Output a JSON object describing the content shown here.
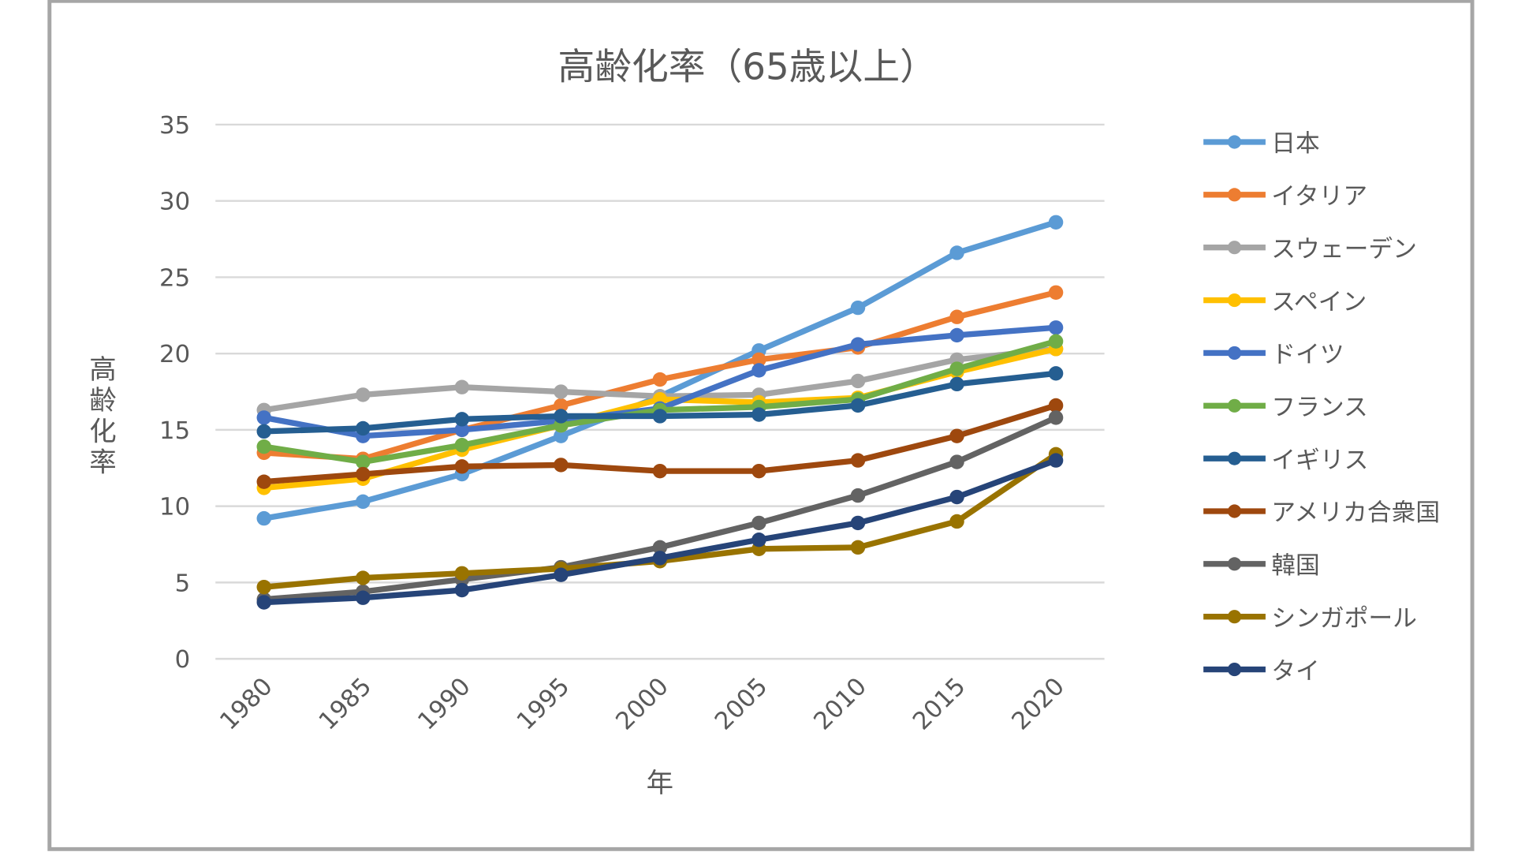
{
  "chart_data": {
    "type": "line",
    "title": "高齢化率（65歳以上）",
    "xlabel": "年",
    "ylabel": "高齢化率",
    "ylim": [
      0,
      35
    ],
    "yticks": [
      0,
      5,
      10,
      15,
      20,
      25,
      30,
      35
    ],
    "grid": true,
    "legend": "right",
    "categories": [
      "1980",
      "1985",
      "1990",
      "1995",
      "2000",
      "2005",
      "2010",
      "2015",
      "2020"
    ],
    "series": [
      {
        "name": "日本",
        "color": "#5B9BD5",
        "values": [
          9.2,
          10.3,
          12.1,
          14.6,
          17.2,
          20.2,
          23.0,
          26.6,
          28.6
        ]
      },
      {
        "name": "イタリア",
        "color": "#ED7D31",
        "values": [
          13.5,
          13.1,
          15.0,
          16.6,
          18.3,
          19.6,
          20.4,
          22.4,
          24.0
        ]
      },
      {
        "name": "スウェーデン",
        "color": "#A5A5A5",
        "values": [
          16.3,
          17.3,
          17.8,
          17.5,
          17.2,
          17.3,
          18.2,
          19.6,
          20.3
        ]
      },
      {
        "name": "スペイン",
        "color": "#FFC000",
        "values": [
          11.2,
          11.8,
          13.7,
          15.3,
          17.0,
          16.8,
          17.1,
          18.8,
          20.3
        ]
      },
      {
        "name": "ドイツ",
        "color": "#4472C4",
        "values": [
          15.8,
          14.6,
          15.0,
          15.6,
          16.4,
          18.9,
          20.6,
          21.2,
          21.7
        ]
      },
      {
        "name": "フランス",
        "color": "#70AD47",
        "values": [
          13.9,
          12.9,
          14.0,
          15.3,
          16.3,
          16.5,
          17.0,
          19.0,
          20.8
        ]
      },
      {
        "name": "イギリス",
        "color": "#255E91",
        "values": [
          14.9,
          15.1,
          15.7,
          15.9,
          15.9,
          16.0,
          16.6,
          18.0,
          18.7
        ]
      },
      {
        "name": "アメリカ合衆国",
        "color": "#9E480E",
        "values": [
          11.6,
          12.1,
          12.6,
          12.7,
          12.3,
          12.3,
          13.0,
          14.6,
          16.6
        ]
      },
      {
        "name": "韓国",
        "color": "#636363",
        "values": [
          3.9,
          4.4,
          5.2,
          6.0,
          7.3,
          8.9,
          10.7,
          12.9,
          15.8
        ]
      },
      {
        "name": "シンガポール",
        "color": "#997300",
        "values": [
          4.7,
          5.3,
          5.6,
          5.9,
          6.4,
          7.2,
          7.3,
          9.0,
          13.4
        ]
      },
      {
        "name": "タイ",
        "color": "#264478",
        "values": [
          3.7,
          4.0,
          4.5,
          5.5,
          6.6,
          7.8,
          8.9,
          10.6,
          13.0
        ]
      }
    ]
  }
}
